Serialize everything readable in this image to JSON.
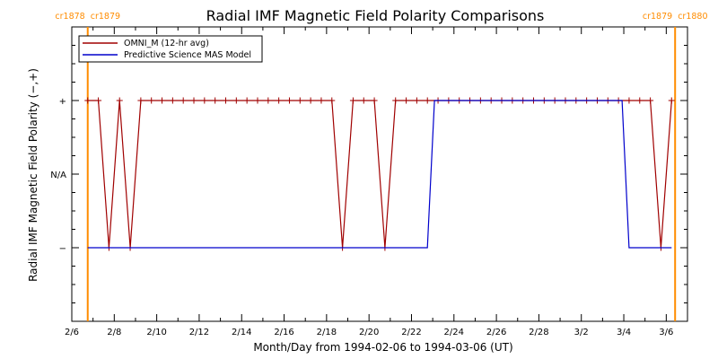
{
  "chart_data": {
    "type": "line",
    "title": "Radial IMF Magnetic Field Polarity Comparisons",
    "xlabel": "Month/Day from 1994-02-06 to 1994-03-06 (UT)",
    "ylabel": "Radial IMF Magnetic Field Polarity (−,+)",
    "x_range": [
      "1994-02-06",
      "1994-03-07"
    ],
    "y_categories": [
      "−",
      "N/A",
      "+"
    ],
    "y_range": [
      -2,
      2
    ],
    "x_tick_labels": [
      {
        "date": "1994-02-06",
        "label": "2/6"
      },
      {
        "date": "1994-02-08",
        "label": "2/8"
      },
      {
        "date": "1994-02-10",
        "label": "2/10"
      },
      {
        "date": "1994-02-12",
        "label": "2/12"
      },
      {
        "date": "1994-02-14",
        "label": "2/14"
      },
      {
        "date": "1994-02-16",
        "label": "2/16"
      },
      {
        "date": "1994-02-18",
        "label": "2/18"
      },
      {
        "date": "1994-02-20",
        "label": "2/20"
      },
      {
        "date": "1994-02-22",
        "label": "2/22"
      },
      {
        "date": "1994-02-24",
        "label": "2/24"
      },
      {
        "date": "1994-02-26",
        "label": "2/26"
      },
      {
        "date": "1994-02-28",
        "label": "2/28"
      },
      {
        "date": "1994-03-02",
        "label": "3/2"
      },
      {
        "date": "1994-03-04",
        "label": "3/4"
      },
      {
        "date": "1994-03-06",
        "label": "3/6"
      }
    ],
    "y_tick_labels": [
      {
        "value": -1,
        "label": "−"
      },
      {
        "value": 0,
        "label": "N/A"
      },
      {
        "value": 1,
        "label": "+"
      }
    ],
    "carrington_markers": [
      {
        "date": "1994-02-06T18:00",
        "label_left": "cr1878",
        "label_right": "cr1879"
      },
      {
        "date": "1994-03-06T10:00",
        "label_left": "cr1879",
        "label_right": "cr1880"
      }
    ],
    "series": [
      {
        "name": "OMNI_M (12-hr avg)",
        "color": "#a00000",
        "marker": "plus",
        "points": [
          [
            "1994-02-06T18:00",
            1
          ],
          [
            "1994-02-07T06:00",
            1
          ],
          [
            "1994-02-07T18:00",
            -1
          ],
          [
            "1994-02-08T06:00",
            1
          ],
          [
            "1994-02-08T18:00",
            -1
          ],
          [
            "1994-02-09T06:00",
            1
          ],
          [
            "1994-02-09T18:00",
            1
          ],
          [
            "1994-02-10T06:00",
            1
          ],
          [
            "1994-02-10T18:00",
            1
          ],
          [
            "1994-02-11T06:00",
            1
          ],
          [
            "1994-02-11T18:00",
            1
          ],
          [
            "1994-02-12T06:00",
            1
          ],
          [
            "1994-02-12T18:00",
            1
          ],
          [
            "1994-02-13T06:00",
            1
          ],
          [
            "1994-02-13T18:00",
            1
          ],
          [
            "1994-02-14T06:00",
            1
          ],
          [
            "1994-02-14T18:00",
            1
          ],
          [
            "1994-02-15T06:00",
            1
          ],
          [
            "1994-02-15T18:00",
            1
          ],
          [
            "1994-02-16T06:00",
            1
          ],
          [
            "1994-02-16T18:00",
            1
          ],
          [
            "1994-02-17T06:00",
            1
          ],
          [
            "1994-02-17T18:00",
            1
          ],
          [
            "1994-02-18T06:00",
            1
          ],
          [
            "1994-02-18T18:00",
            -1
          ],
          [
            "1994-02-19T06:00",
            1
          ],
          [
            "1994-02-19T18:00",
            1
          ],
          [
            "1994-02-20T06:00",
            1
          ],
          [
            "1994-02-20T18:00",
            -1
          ],
          [
            "1994-02-21T06:00",
            1
          ],
          [
            "1994-02-21T18:00",
            1
          ],
          [
            "1994-02-22T06:00",
            1
          ],
          [
            "1994-02-22T18:00",
            1
          ],
          [
            "1994-02-23T06:00",
            1
          ],
          [
            "1994-02-23T18:00",
            1
          ],
          [
            "1994-02-24T06:00",
            1
          ],
          [
            "1994-02-24T18:00",
            1
          ],
          [
            "1994-02-25T06:00",
            1
          ],
          [
            "1994-02-25T18:00",
            1
          ],
          [
            "1994-02-26T06:00",
            1
          ],
          [
            "1994-02-26T18:00",
            1
          ],
          [
            "1994-02-27T06:00",
            1
          ],
          [
            "1994-02-27T18:00",
            1
          ],
          [
            "1994-02-28T06:00",
            1
          ],
          [
            "1994-02-28T18:00",
            1
          ],
          [
            "1994-03-01T06:00",
            1
          ],
          [
            "1994-03-01T18:00",
            1
          ],
          [
            "1994-03-02T06:00",
            1
          ],
          [
            "1994-03-02T18:00",
            1
          ],
          [
            "1994-03-03T06:00",
            1
          ],
          [
            "1994-03-03T18:00",
            1
          ],
          [
            "1994-03-04T06:00",
            1
          ],
          [
            "1994-03-04T18:00",
            1
          ],
          [
            "1994-03-05T06:00",
            1
          ],
          [
            "1994-03-05T18:00",
            -1
          ],
          [
            "1994-03-06T06:00",
            1
          ]
        ]
      },
      {
        "name": "Predictive Science MAS Model",
        "color": "#0000cc",
        "marker": "none",
        "points": [
          [
            "1994-02-06T18:00",
            -1
          ],
          [
            "1994-02-22T18:00",
            -1
          ],
          [
            "1994-02-23T02:00",
            1
          ],
          [
            "1994-03-03T22:00",
            1
          ],
          [
            "1994-03-04T06:00",
            -1
          ],
          [
            "1994-03-06T06:00",
            -1
          ]
        ]
      }
    ],
    "legend": {
      "placement": "top-left",
      "boxed": true
    },
    "colors": {
      "marker_lines": "#ff8c00",
      "axes": "#000000"
    }
  }
}
